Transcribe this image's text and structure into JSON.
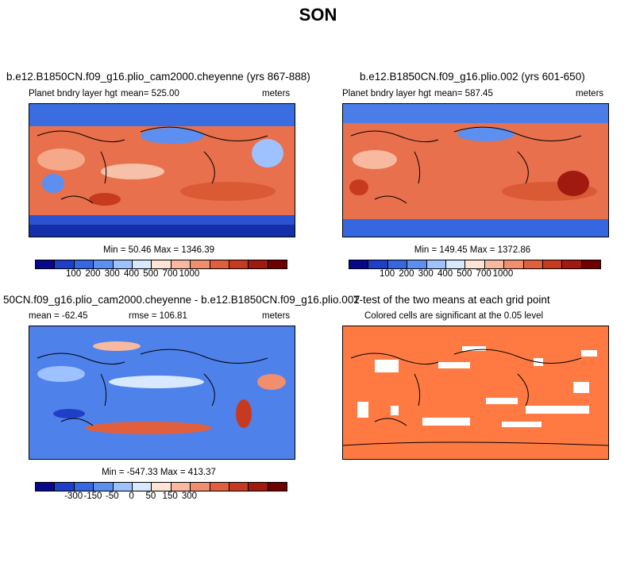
{
  "title": "SON",
  "colorbar_colors": [
    "#08088c",
    "#1f3fc8",
    "#3467e0",
    "#5c8ff0",
    "#9ec1ff",
    "#d8e8ff",
    "#ffe4d6",
    "#f7b9a0",
    "#f08e6e",
    "#e0603e",
    "#c83a20",
    "#a01a10",
    "#700000"
  ],
  "diff_colorbar_colors": [
    "#08088c",
    "#1f3fc8",
    "#3467e0",
    "#5c8ff0",
    "#9ec1ff",
    "#d8e8ff",
    "#ffe4d6",
    "#f7b9a0",
    "#f08e6e",
    "#e0603e",
    "#c83a20",
    "#a01a10",
    "#700000"
  ],
  "sig_color": "#ff7a42",
  "panels": {
    "p1": {
      "title": "b.e12.B1850CN.f09_g16.plio_cam2000.cheyenne (yrs 867-888)",
      "variable": "Planet bndry layer hgt",
      "mean": "mean= 525.00",
      "units": "meters",
      "minmax": "Min =  50.46 Max = 1346.39",
      "ticks": [
        "100",
        "200",
        "300",
        "400",
        "500",
        "700",
        "1000"
      ]
    },
    "p2": {
      "title": "b.e12.B1850CN.f09_g16.plio.002 (yrs 601-650)",
      "variable": "Planet bndry layer hgt",
      "mean": "mean= 587.45",
      "units": "meters",
      "minmax": "Min = 149.45 Max = 1372.86",
      "ticks": [
        "100",
        "200",
        "300",
        "400",
        "500",
        "700",
        "1000"
      ]
    },
    "p3": {
      "title": "50CN.f09_g16.plio_cam2000.cheyenne - b.e12.B1850CN.f09_g16.plio.002",
      "mean": "mean = -62.45",
      "rmse": "rmse = 106.81",
      "units": "meters",
      "minmax": "Min = -547.33 Max = 413.37",
      "ticks": [
        "-300",
        "-150",
        "-50",
        "0",
        "50",
        "150",
        "300"
      ]
    },
    "p4": {
      "title": "T-test of the two means at each grid point",
      "subtitle": "Colored cells are significant at the 0.05 level"
    }
  },
  "chart_data": [
    {
      "type": "heatmap",
      "title": "b.e12.B1850CN.f09_g16.plio_cam2000.cheyenne (yrs 867-888)",
      "variable": "Planet bndry layer hgt",
      "units": "meters",
      "mean": 525.0,
      "min": 50.46,
      "max": 1346.39,
      "colorbar_ticks": [
        100,
        200,
        300,
        400,
        500,
        700,
        1000
      ]
    },
    {
      "type": "heatmap",
      "title": "b.e12.B1850CN.f09_g16.plio.002 (yrs 601-650)",
      "variable": "Planet bndry layer hgt",
      "units": "meters",
      "mean": 587.45,
      "min": 149.45,
      "max": 1372.86,
      "colorbar_ticks": [
        100,
        200,
        300,
        400,
        500,
        700,
        1000
      ]
    },
    {
      "type": "heatmap",
      "title": "50CN.f09_g16.plio_cam2000.cheyenne - b.e12.B1850CN.f09_g16.plio.002",
      "units": "meters",
      "mean": -62.45,
      "rmse": 106.81,
      "min": -547.33,
      "max": 413.37,
      "colorbar_ticks": [
        -300,
        -150,
        -50,
        0,
        50,
        150,
        300
      ]
    },
    {
      "type": "heatmap",
      "title": "T-test of the two means at each grid point",
      "subtitle": "Colored cells are significant at the 0.05 level"
    }
  ]
}
